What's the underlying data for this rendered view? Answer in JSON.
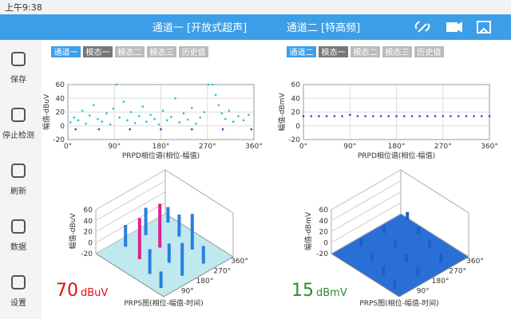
{
  "status": {
    "time": "上午9:38"
  },
  "header": {
    "channel1": "通道一 [开放式超声]",
    "channel2": "通道二 [特高频]"
  },
  "sidebar": [
    "保存",
    "停止检测",
    "刷新",
    "数据",
    "设置"
  ],
  "left": {
    "tabs": [
      "通道一",
      "模态一",
      "模态二",
      "模态三",
      "历史值"
    ],
    "prpd": {
      "ylabel": "幅值-dBuV",
      "yticks": [
        -20,
        0,
        20,
        40,
        60
      ],
      "xticks": [
        "0°",
        "90°",
        "180°",
        "270°",
        "360°"
      ],
      "xlabel": "PRPD相位谱(相位-幅值)",
      "points": [
        [
          5,
          5
        ],
        [
          12,
          12
        ],
        [
          20,
          8
        ],
        [
          28,
          22
        ],
        [
          35,
          3
        ],
        [
          42,
          15
        ],
        [
          50,
          30
        ],
        [
          58,
          10
        ],
        [
          66,
          6
        ],
        [
          75,
          18
        ],
        [
          82,
          2
        ],
        [
          88,
          25
        ],
        [
          94,
          60
        ],
        [
          100,
          12
        ],
        [
          108,
          35
        ],
        [
          115,
          8
        ],
        [
          122,
          20
        ],
        [
          130,
          4
        ],
        [
          138,
          14
        ],
        [
          145,
          28
        ],
        [
          152,
          6
        ],
        [
          160,
          16
        ],
        [
          168,
          10
        ],
        [
          176,
          2
        ],
        [
          184,
          22
        ],
        [
          192,
          8
        ],
        [
          200,
          13
        ],
        [
          208,
          40
        ],
        [
          216,
          5
        ],
        [
          224,
          18
        ],
        [
          232,
          9
        ],
        [
          240,
          26
        ],
        [
          248,
          3
        ],
        [
          256,
          12
        ],
        [
          264,
          20
        ],
        [
          272,
          60
        ],
        [
          280,
          60
        ],
        [
          286,
          45
        ],
        [
          292,
          30
        ],
        [
          298,
          18
        ],
        [
          305,
          10
        ],
        [
          312,
          22
        ],
        [
          320,
          6
        ],
        [
          330,
          14
        ],
        [
          340,
          8
        ],
        [
          350,
          16
        ],
        [
          15,
          -5
        ],
        [
          60,
          -5
        ],
        [
          120,
          -5
        ],
        [
          180,
          -5
        ],
        [
          240,
          -5
        ],
        [
          300,
          -5
        ],
        [
          355,
          -5
        ]
      ]
    },
    "prps": {
      "ylabel": "幅值-dBuV",
      "yticks": [
        60,
        40,
        20,
        0,
        -20
      ],
      "xticks": [
        "90°",
        "180°",
        "270°",
        "360°"
      ],
      "xlabel": "PRPS图(相位-幅值-时间)",
      "bars": [
        [
          30,
          10
        ],
        [
          60,
          25
        ],
        [
          95,
          55
        ],
        [
          110,
          20
        ],
        [
          140,
          40
        ],
        [
          160,
          15
        ],
        [
          200,
          60
        ],
        [
          215,
          30
        ],
        [
          250,
          12
        ],
        [
          280,
          45
        ],
        [
          300,
          20
        ],
        [
          330,
          8
        ]
      ]
    },
    "reading": {
      "value": 70,
      "unit": "dBuV"
    }
  },
  "right": {
    "tabs": [
      "通道二",
      "模态一",
      "模态二",
      "模态三",
      "历史值"
    ],
    "prpd": {
      "ylabel": "幅值-dBmV",
      "yticks": [
        -20,
        0,
        20,
        40,
        60
      ],
      "xticks": [
        "0°",
        "90°",
        "180°",
        "270°",
        "360°"
      ],
      "xlabel": "PRPD相位谱(相位-幅值)",
      "points": [
        [
          0,
          14
        ],
        [
          15,
          14
        ],
        [
          30,
          14
        ],
        [
          45,
          14
        ],
        [
          60,
          14
        ],
        [
          75,
          14
        ],
        [
          90,
          16
        ],
        [
          105,
          14
        ],
        [
          120,
          14
        ],
        [
          135,
          14
        ],
        [
          150,
          14
        ],
        [
          165,
          14
        ],
        [
          180,
          14
        ],
        [
          195,
          14
        ],
        [
          210,
          14
        ],
        [
          225,
          14
        ],
        [
          240,
          14
        ],
        [
          255,
          14
        ],
        [
          270,
          14
        ],
        [
          285,
          14
        ],
        [
          300,
          14
        ],
        [
          315,
          14
        ],
        [
          330,
          14
        ],
        [
          345,
          14
        ],
        [
          360,
          14
        ]
      ]
    },
    "prps": {
      "ylabel": "幅值-dBmV",
      "yticks": [
        60,
        40,
        20,
        0,
        -20
      ],
      "xticks": [
        "90°",
        "180°",
        "270°",
        "360°"
      ],
      "xlabel": "PRPS图(相位-幅值-时间)",
      "bars": [
        [
          20,
          -5
        ],
        [
          50,
          -4
        ],
        [
          80,
          -6
        ],
        [
          110,
          -5
        ],
        [
          140,
          -4
        ],
        [
          170,
          -5
        ],
        [
          200,
          -6
        ],
        [
          230,
          -5
        ],
        [
          260,
          -4
        ],
        [
          290,
          -5
        ],
        [
          320,
          -6
        ],
        [
          350,
          -5
        ]
      ]
    },
    "reading": {
      "value": 15,
      "unit": "dBmV"
    }
  }
}
